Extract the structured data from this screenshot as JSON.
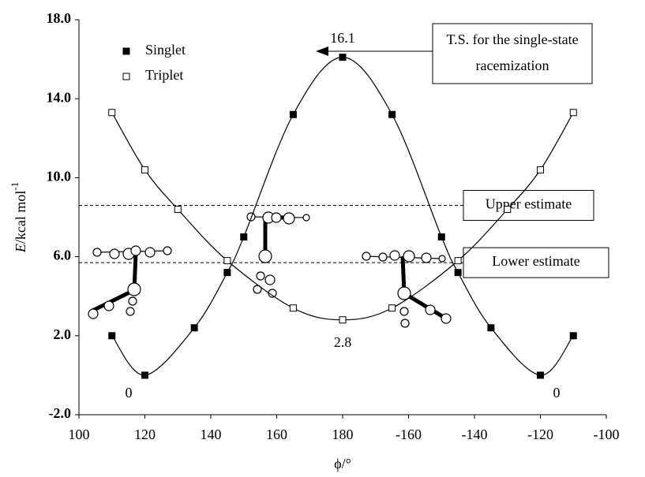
{
  "chart_data": {
    "type": "line",
    "x_label": "ϕ/°",
    "y_label": {
      "symbol": "E",
      "unit": "/kcal mol",
      "exponent": "-1"
    },
    "x": [
      110,
      120,
      135,
      145,
      150,
      165,
      180,
      -165,
      -150,
      -145,
      -135,
      -120,
      -110
    ],
    "series": [
      {
        "name": "Singlet",
        "color": "#000000",
        "marker": "filled-square",
        "values": [
          2.0,
          0,
          2.4,
          5.2,
          7.0,
          13.2,
          16.1,
          13.2,
          7.0,
          5.2,
          2.4,
          0,
          2.0
        ]
      },
      {
        "name": "Triplet",
        "color": "#000000",
        "marker": "open-square",
        "x": [
          110,
          120,
          130,
          145,
          165,
          180,
          -165,
          -145,
          -130,
          -120,
          -110
        ],
        "values": [
          13.3,
          10.4,
          8.4,
          5.8,
          3.4,
          2.8,
          3.4,
          5.8,
          8.4,
          10.4,
          13.3
        ]
      }
    ],
    "xlim": [
      100,
      -100
    ],
    "xticks": [
      100,
      120,
      140,
      160,
      180,
      -160,
      -140,
      -120,
      -100
    ],
    "ylim": [
      -2,
      18
    ],
    "yticks": [
      {
        "value": -2,
        "label": "-2.0"
      },
      {
        "value": 2,
        "label": "2.0"
      },
      {
        "value": 6,
        "label": "6.0"
      },
      {
        "value": 10,
        "label": "10.0"
      },
      {
        "value": 14,
        "label": "14.0"
      },
      {
        "value": 18,
        "label": "18.0"
      }
    ],
    "reference_lines": [
      {
        "label": "Upper estimate",
        "value": 8.6
      },
      {
        "label": "Lower estimate",
        "value": 5.7
      }
    ],
    "annotations": [
      "16.1",
      "2.8",
      "0",
      "0"
    ],
    "callout": [
      "T.S. for the single-state",
      "racemization"
    ],
    "legend": "upper-left"
  }
}
